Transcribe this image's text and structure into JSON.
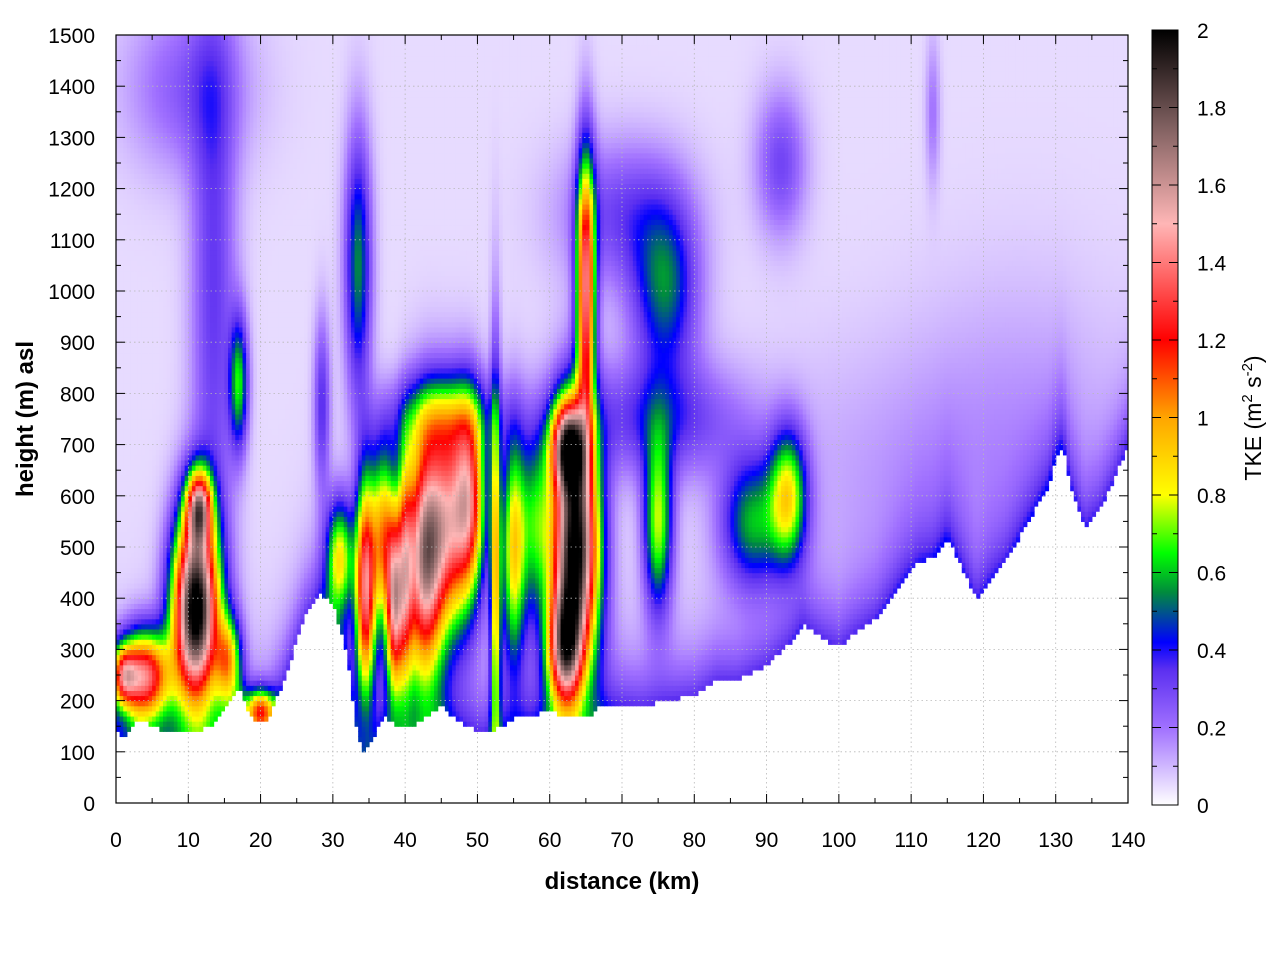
{
  "chart_data": {
    "type": "heatmap",
    "title": "",
    "xlabel": "distance (km)",
    "ylabel": "height (m) asl",
    "xlim": [
      0,
      140
    ],
    "ylim": [
      0,
      1500
    ],
    "x_ticks": [
      "0",
      "10",
      "20",
      "30",
      "40",
      "50",
      "60",
      "70",
      "80",
      "90",
      "100",
      "110",
      "120",
      "130",
      "140"
    ],
    "y_ticks": [
      "0",
      "100",
      "200",
      "300",
      "400",
      "500",
      "600",
      "700",
      "800",
      "900",
      "1000",
      "1100",
      "1200",
      "1300",
      "1400",
      "1500"
    ],
    "grid": true,
    "colorbar": {
      "label": "TKE",
      "units": "(m² s⁻²)",
      "units_base": "(m",
      "units_sup1": "2",
      "units_mid": " s",
      "units_sup2": "-2",
      "units_end": ")",
      "range": [
        0,
        2
      ],
      "ticks": [
        "0",
        "0.2",
        "0.4",
        "0.6",
        "0.8",
        "1",
        "1.2",
        "1.4",
        "1.6",
        "1.8",
        "2"
      ],
      "colors": [
        {
          "v": 0.0,
          "c": "#ffffff"
        },
        {
          "v": 0.2,
          "c": "#a070ff"
        },
        {
          "v": 0.35,
          "c": "#5b2ff0"
        },
        {
          "v": 0.42,
          "c": "#0000ff"
        },
        {
          "v": 0.55,
          "c": "#008c3c"
        },
        {
          "v": 0.65,
          "c": "#00ff00"
        },
        {
          "v": 0.8,
          "c": "#ffff00"
        },
        {
          "v": 1.0,
          "c": "#ffa500"
        },
        {
          "v": 1.2,
          "c": "#ff0000"
        },
        {
          "v": 1.5,
          "c": "#ffb6b6"
        },
        {
          "v": 1.75,
          "c": "#806060"
        },
        {
          "v": 2.0,
          "c": "#000000"
        }
      ]
    },
    "terrain": [
      [
        0,
        140
      ],
      [
        1,
        130
      ],
      [
        3,
        165
      ],
      [
        5,
        150
      ],
      [
        7,
        140
      ],
      [
        10,
        135
      ],
      [
        13,
        150
      ],
      [
        15,
        185
      ],
      [
        17,
        225
      ],
      [
        19,
        160
      ],
      [
        21,
        165
      ],
      [
        23,
        230
      ],
      [
        26,
        360
      ],
      [
        28,
        410
      ],
      [
        30,
        390
      ],
      [
        32,
        290
      ],
      [
        33,
        170
      ],
      [
        34,
        100
      ],
      [
        35,
        110
      ],
      [
        37,
        170
      ],
      [
        39,
        150
      ],
      [
        41,
        150
      ],
      [
        43,
        170
      ],
      [
        45,
        190
      ],
      [
        47,
        165
      ],
      [
        50,
        140
      ],
      [
        52,
        140
      ],
      [
        55,
        165
      ],
      [
        60,
        180
      ],
      [
        62,
        170
      ],
      [
        65,
        165
      ],
      [
        67,
        190
      ],
      [
        70,
        195
      ],
      [
        73,
        190
      ],
      [
        76,
        200
      ],
      [
        80,
        210
      ],
      [
        83,
        240
      ],
      [
        86,
        240
      ],
      [
        90,
        270
      ],
      [
        93,
        310
      ],
      [
        95,
        350
      ],
      [
        98,
        320
      ],
      [
        100,
        305
      ],
      [
        102,
        330
      ],
      [
        105,
        360
      ],
      [
        107,
        400
      ],
      [
        109,
        440
      ],
      [
        111,
        470
      ],
      [
        113,
        480
      ],
      [
        115,
        520
      ],
      [
        117,
        460
      ],
      [
        119,
        400
      ],
      [
        121,
        440
      ],
      [
        123,
        470
      ],
      [
        125,
        520
      ],
      [
        127,
        570
      ],
      [
        129,
        620
      ],
      [
        130,
        680
      ],
      [
        131,
        700
      ],
      [
        132,
        620
      ],
      [
        134,
        540
      ],
      [
        136,
        570
      ],
      [
        138,
        630
      ],
      [
        140,
        700
      ]
    ],
    "cells": [
      {
        "x": 4,
        "y": 250,
        "sx": 2.4,
        "sy": 60,
        "v": 1.25
      },
      {
        "x": 1,
        "y": 250,
        "sx": 1.2,
        "sy": 40,
        "v": 0.8
      },
      {
        "x": 11,
        "y": 380,
        "sx": 2.2,
        "sy": 130,
        "v": 2.0
      },
      {
        "x": 11.5,
        "y": 580,
        "sx": 1.2,
        "sy": 50,
        "v": 1.1
      },
      {
        "x": 15.5,
        "y": 280,
        "sx": 1.2,
        "sy": 60,
        "v": 0.7
      },
      {
        "x": 17,
        "y": 820,
        "sx": 0.9,
        "sy": 90,
        "v": 0.55
      },
      {
        "x": 13.5,
        "y": 1000,
        "sx": 2.2,
        "sy": 400,
        "v": 0.28
      },
      {
        "x": 20,
        "y": 180,
        "sx": 1.5,
        "sy": 30,
        "v": 0.9
      },
      {
        "x": 31,
        "y": 480,
        "sx": 1.3,
        "sy": 80,
        "v": 0.75
      },
      {
        "x": 33.5,
        "y": 1050,
        "sx": 1.3,
        "sy": 180,
        "v": 0.5
      },
      {
        "x": 28.5,
        "y": 780,
        "sx": 0.8,
        "sy": 120,
        "v": 0.3
      },
      {
        "x": 34.5,
        "y": 420,
        "sx": 1.0,
        "sy": 150,
        "v": 1.3
      },
      {
        "x": 37,
        "y": 520,
        "sx": 1.2,
        "sy": 120,
        "v": 0.9
      },
      {
        "x": 38.5,
        "y": 380,
        "sx": 0.8,
        "sy": 120,
        "v": 1.1
      },
      {
        "x": 40,
        "y": 450,
        "sx": 0.8,
        "sy": 160,
        "v": 0.8
      },
      {
        "x": 42.5,
        "y": 470,
        "sx": 1.8,
        "sy": 170,
        "v": 1.3
      },
      {
        "x": 46,
        "y": 550,
        "sx": 2.4,
        "sy": 150,
        "v": 1.2
      },
      {
        "x": 49,
        "y": 600,
        "sx": 1.5,
        "sy": 130,
        "v": 0.9
      },
      {
        "x": 52.5,
        "y": 450,
        "sx": 0.5,
        "sy": 280,
        "v": 0.8
      },
      {
        "x": 55,
        "y": 500,
        "sx": 1.2,
        "sy": 160,
        "v": 0.8
      },
      {
        "x": 58,
        "y": 550,
        "sx": 1.5,
        "sy": 130,
        "v": 0.5
      },
      {
        "x": 63.5,
        "y": 500,
        "sx": 2.3,
        "sy": 170,
        "v": 2.0
      },
      {
        "x": 62,
        "y": 300,
        "sx": 1.6,
        "sy": 80,
        "v": 1.1
      },
      {
        "x": 65,
        "y": 1000,
        "sx": 0.9,
        "sy": 180,
        "v": 1.3
      },
      {
        "x": 62.5,
        "y": 700,
        "sx": 1.6,
        "sy": 60,
        "v": 1.2
      },
      {
        "x": 75,
        "y": 550,
        "sx": 1.4,
        "sy": 120,
        "v": 0.7
      },
      {
        "x": 76,
        "y": 1000,
        "sx": 3.2,
        "sy": 120,
        "v": 0.45
      },
      {
        "x": 88,
        "y": 550,
        "sx": 3.0,
        "sy": 90,
        "v": 0.5
      },
      {
        "x": 93,
        "y": 600,
        "sx": 1.8,
        "sy": 90,
        "v": 0.7
      },
      {
        "x": 92,
        "y": 1250,
        "sx": 2.5,
        "sy": 100,
        "v": 0.25
      },
      {
        "x": 113,
        "y": 1350,
        "sx": 0.7,
        "sy": 100,
        "v": 0.15
      },
      {
        "x": 45,
        "y": 750,
        "sx": 5.0,
        "sy": 60,
        "v": 0.4
      },
      {
        "x": 75,
        "y": 750,
        "sx": 8.0,
        "sy": 80,
        "v": 0.3
      },
      {
        "x": 10,
        "y": 1400,
        "sx": 6.0,
        "sy": 120,
        "v": 0.2
      },
      {
        "x": 70,
        "y": 1150,
        "sx": 6.0,
        "sy": 100,
        "v": 0.25
      },
      {
        "x": 110,
        "y": 650,
        "sx": 15.0,
        "sy": 180,
        "v": 0.08
      },
      {
        "x": 125,
        "y": 800,
        "sx": 10.0,
        "sy": 200,
        "v": 0.06
      }
    ]
  }
}
